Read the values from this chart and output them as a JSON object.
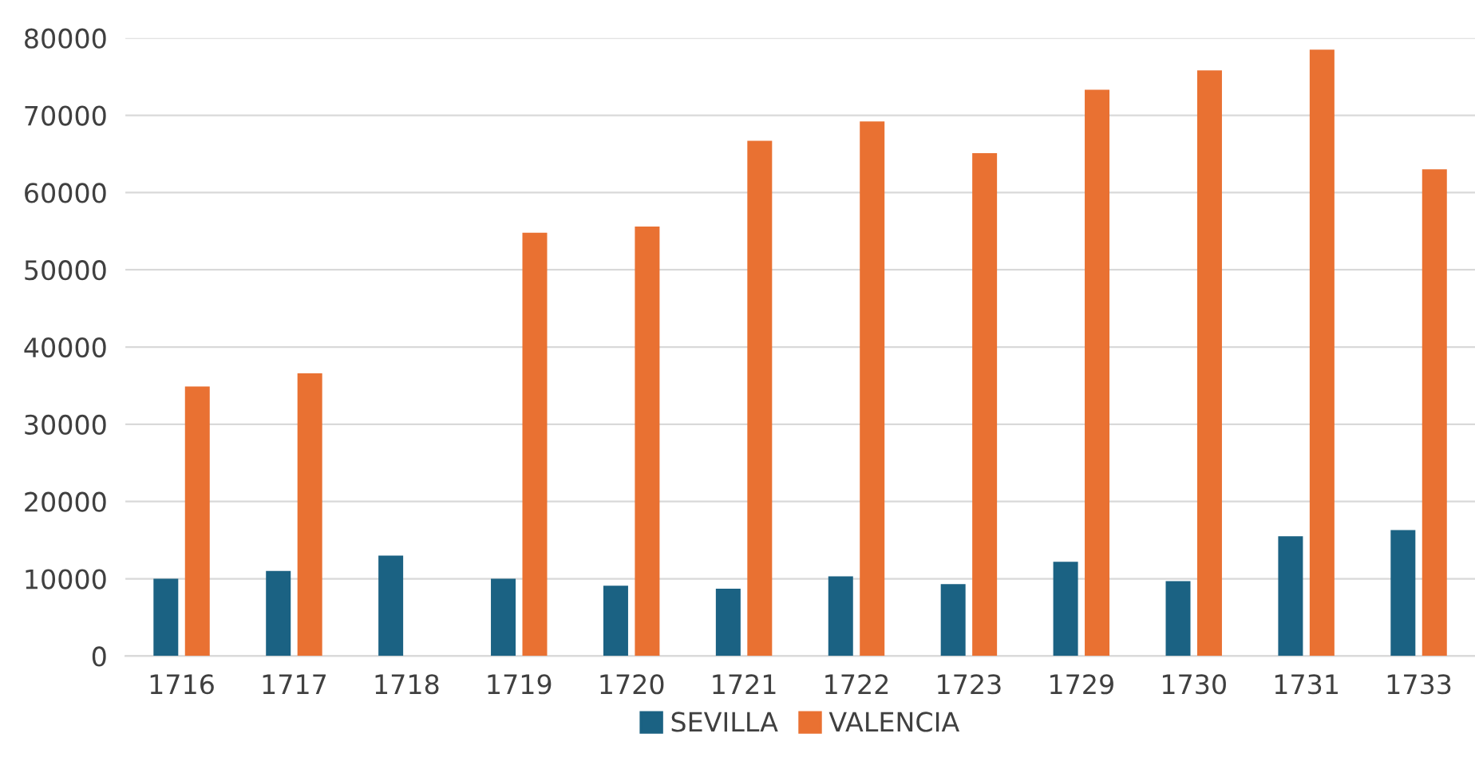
{
  "chart_data": {
    "type": "bar",
    "categories": [
      "1716",
      "1717",
      "1718",
      "1719",
      "1720",
      "1721",
      "1722",
      "1723",
      "1729",
      "1730",
      "1731",
      "1733"
    ],
    "series": [
      {
        "name": "SEVILLA",
        "color": "#1b6283",
        "values": [
          10000,
          11000,
          13000,
          10000,
          9100,
          8700,
          10300,
          9300,
          12200,
          9700,
          15500,
          16300
        ]
      },
      {
        "name": "VALENCIA",
        "color": "#e97132",
        "values": [
          34900,
          36600,
          null,
          54800,
          55600,
          66700,
          69200,
          65100,
          73300,
          75800,
          78500,
          63000
        ]
      }
    ],
    "ylim": [
      0,
      80000
    ],
    "yticks": [
      0,
      10000,
      20000,
      30000,
      40000,
      50000,
      60000,
      70000,
      80000
    ],
    "grid": "y",
    "legend": "bottom"
  }
}
